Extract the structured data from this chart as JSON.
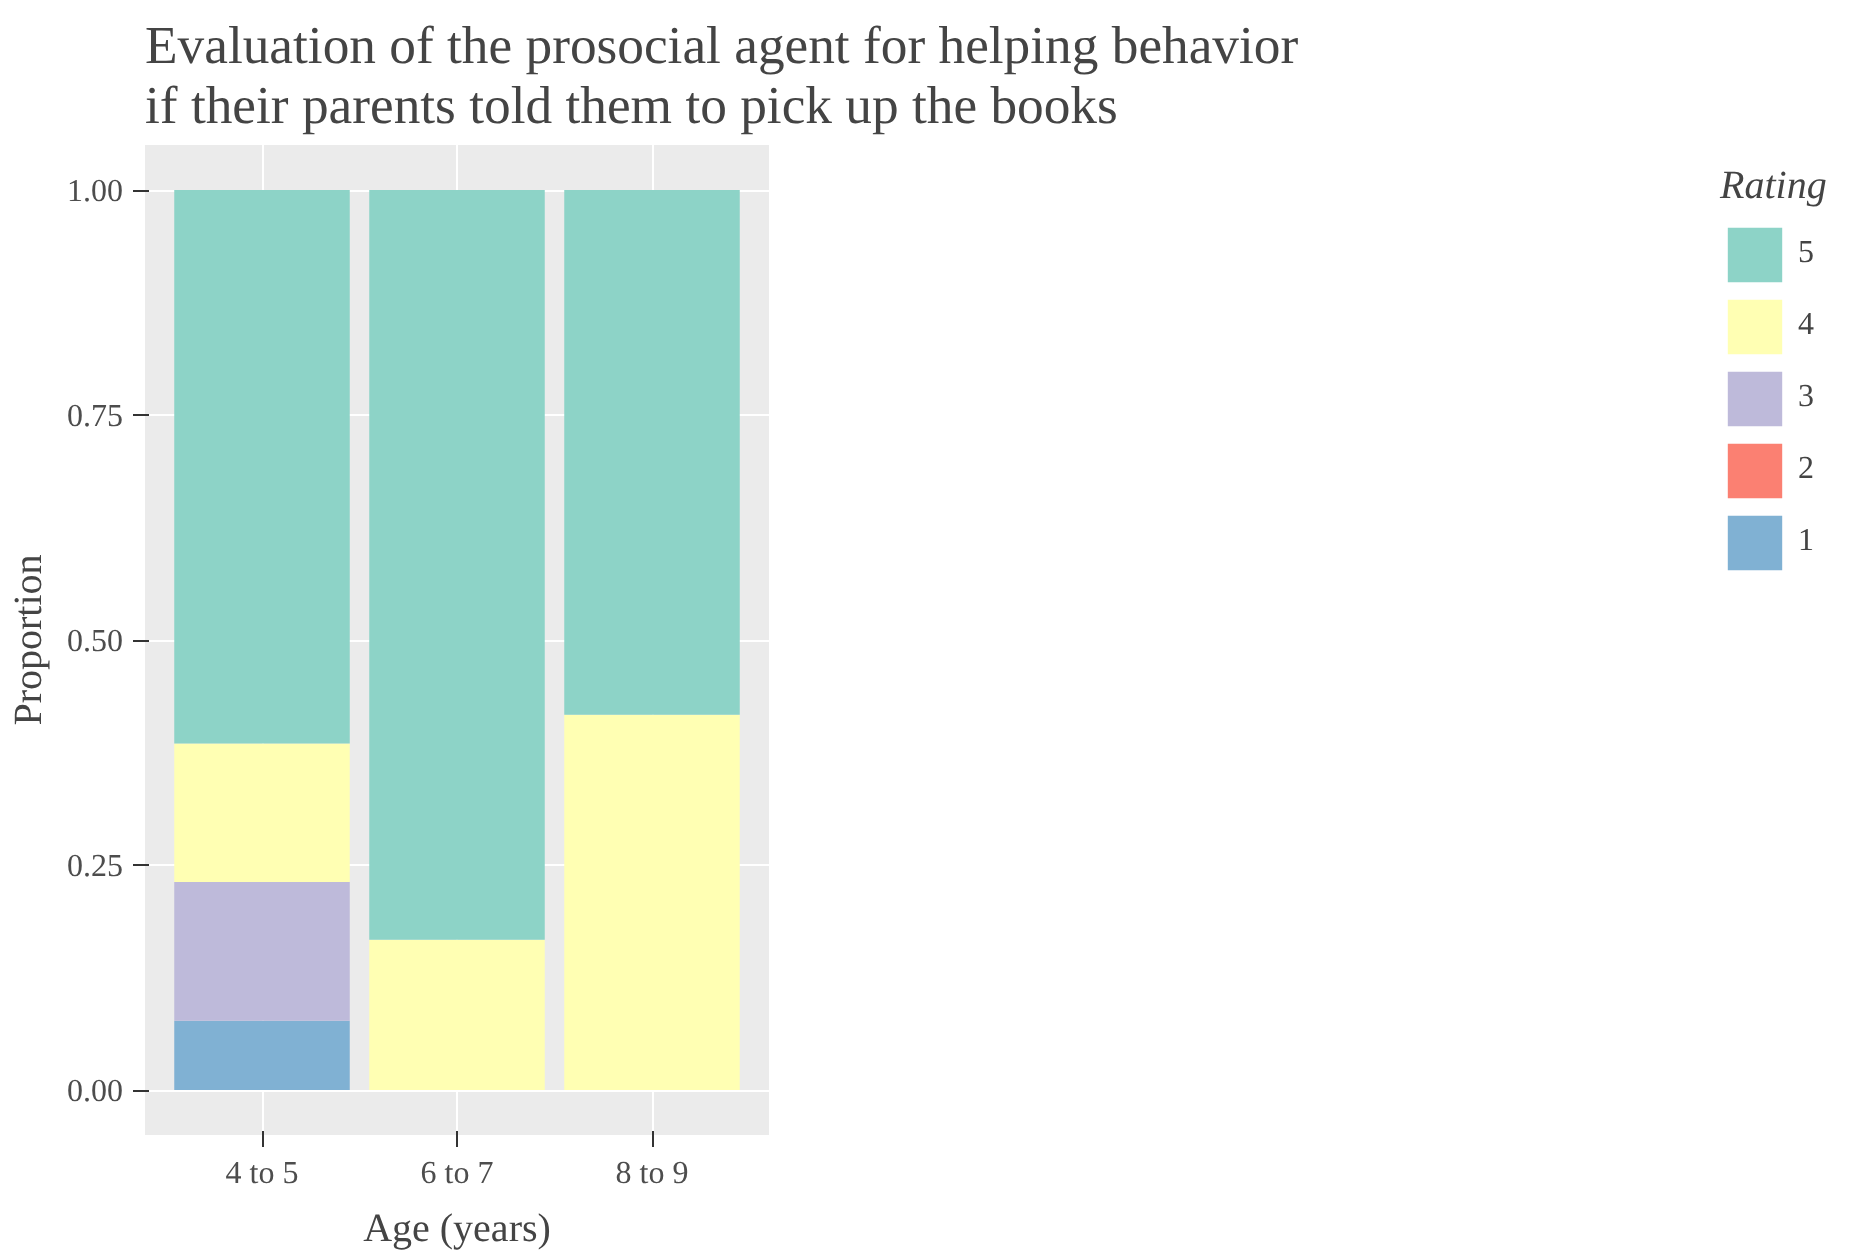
{
  "chart_data": {
    "type": "bar",
    "stacked": true,
    "title": "Evaluation of the prosocial agent for helping behavior\n  if their parents told them to pick up the books",
    "xlabel": "Age (years)",
    "ylabel": "Proportion",
    "legend_title": "Rating",
    "categories": [
      "4 to 5",
      "6 to 7",
      "8 to 9"
    ],
    "series": [
      {
        "name": "1",
        "color": "#80b1d3",
        "values": [
          0.077,
          0,
          0
        ]
      },
      {
        "name": "2",
        "color": "#fb8072",
        "values": [
          0,
          0,
          0
        ]
      },
      {
        "name": "3",
        "color": "#bebada",
        "values": [
          0.154,
          0,
          0
        ]
      },
      {
        "name": "4",
        "color": "#ffffb3",
        "values": [
          0.154,
          0.167,
          0.417
        ]
      },
      {
        "name": "5",
        "color": "#8dd3c7",
        "values": [
          0.615,
          0.833,
          0.583
        ]
      }
    ],
    "ylim": [
      -0.05,
      1.05
    ],
    "yticks": [
      {
        "value": 0,
        "label": "0.00"
      },
      {
        "value": 0.25,
        "label": "0.25"
      },
      {
        "value": 0.5,
        "label": "0.50"
      },
      {
        "value": 0.75,
        "label": "0.75"
      },
      {
        "value": 1,
        "label": "1.00"
      }
    ],
    "grid": true,
    "legend": "right"
  }
}
